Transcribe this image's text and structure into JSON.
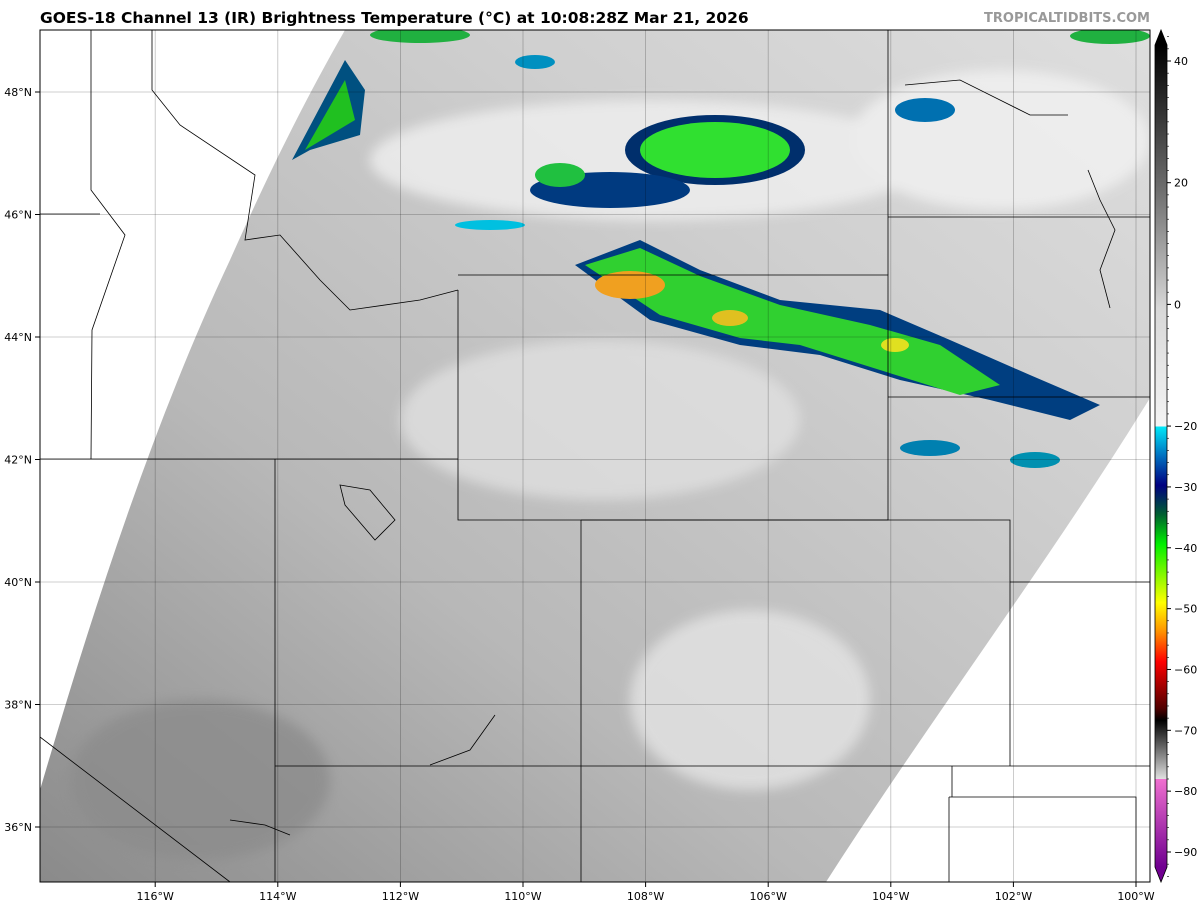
{
  "header": {
    "title": "GOES-18 Channel 13 (IR) Brightness Temperature (°C) at 10:08:28Z Mar 21, 2026",
    "credit": "TROPICALTIDBITS.COM"
  },
  "map": {
    "lon_labels": [
      "116°W",
      "114°W",
      "112°W",
      "110°W",
      "108°W",
      "106°W",
      "104°W",
      "102°W",
      "100°W"
    ],
    "lat_labels": [
      "48°N",
      "46°N",
      "44°N",
      "42°N",
      "40°N",
      "38°N",
      "36°N"
    ],
    "lons": [
      -116,
      -114,
      -112,
      -110,
      -108,
      -106,
      -104,
      -102,
      -100
    ],
    "lats": [
      48,
      46,
      44,
      42,
      40,
      38,
      36
    ],
    "gridlines": true
  },
  "colorbar": {
    "units": "°C",
    "range": [
      -95,
      45
    ],
    "tick_values": [
      40,
      20,
      0,
      -20,
      -30,
      -40,
      -50,
      -60,
      -70,
      -80,
      -90
    ],
    "tick_labels": [
      "40",
      "20",
      "0",
      "−20",
      "−30",
      "−40",
      "−50",
      "−60",
      "−70",
      "−80",
      "−90"
    ],
    "colormap": [
      {
        "t": 45,
        "color": "#000000"
      },
      {
        "t": 20,
        "color": "#707070"
      },
      {
        "t": 0,
        "color": "#d8d8d8"
      },
      {
        "t": -20,
        "color": "#f4f4f4"
      },
      {
        "t": -20,
        "color": "#00e8f8"
      },
      {
        "t": -25,
        "color": "#0070c0"
      },
      {
        "t": -30,
        "color": "#000080"
      },
      {
        "t": -35,
        "color": "#006030"
      },
      {
        "t": -40,
        "color": "#00f000"
      },
      {
        "t": -50,
        "color": "#ffff00"
      },
      {
        "t": -55,
        "color": "#ff9000"
      },
      {
        "t": -60,
        "color": "#ff0000"
      },
      {
        "t": -68,
        "color": "#500000"
      },
      {
        "t": -70,
        "color": "#000000"
      },
      {
        "t": -80,
        "color": "#e0e0e0"
      },
      {
        "t": -80,
        "color": "#f070d0"
      },
      {
        "t": -95,
        "color": "#700090"
      }
    ]
  }
}
